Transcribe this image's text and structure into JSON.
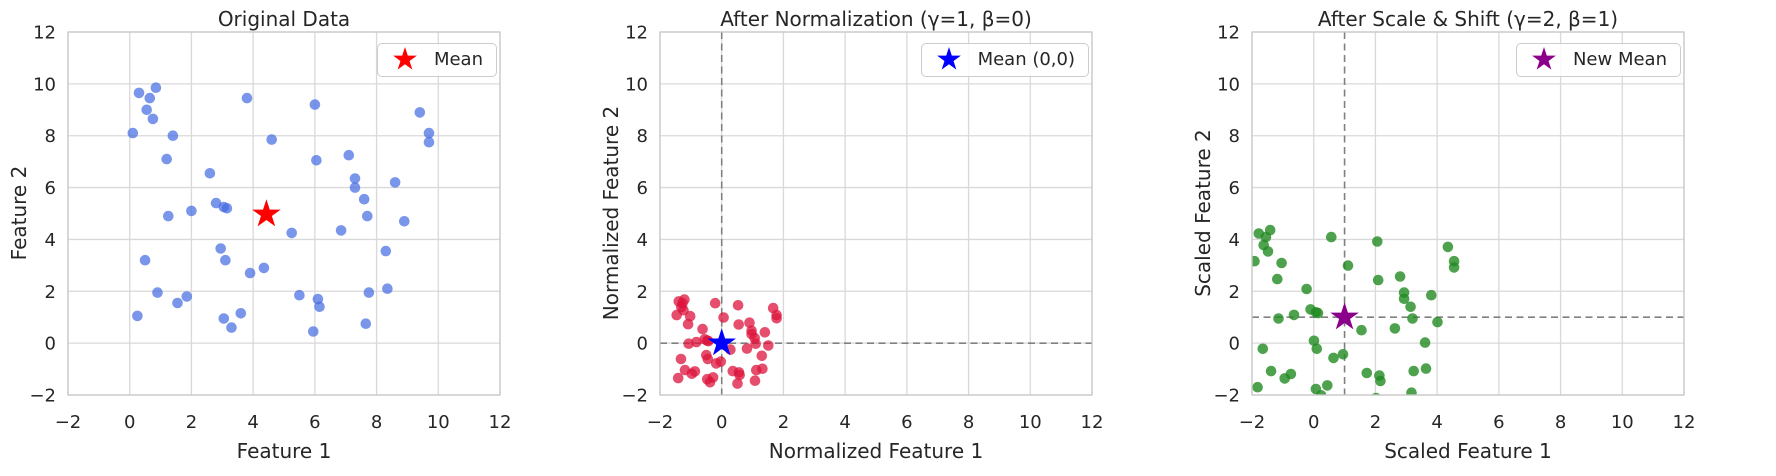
{
  "figure": {
    "background": "#ffffff",
    "grid_color": "#d9d9d9",
    "spine_color": "#c8c8c8",
    "text_color": "#262626",
    "refline_color": "#808080"
  },
  "chart_data": [
    {
      "type": "scatter",
      "title": "Original Data",
      "xlabel": "Feature 1",
      "ylabel": "Feature 2",
      "xlim": [
        -2,
        12
      ],
      "ylim": [
        -2,
        12
      ],
      "xticks": [
        -2,
        0,
        2,
        4,
        6,
        8,
        10,
        12
      ],
      "yticks": [
        -2,
        0,
        2,
        4,
        6,
        8,
        10,
        12
      ],
      "grid": true,
      "legend": {
        "label": "Mean",
        "marker": "star",
        "color": "#ff0000",
        "position": "upper right"
      },
      "point_color": "rgba(65,105,225,0.7)",
      "mean_star": {
        "x": 4.43,
        "y": 4.97,
        "color": "#ff0000"
      },
      "reflines": null,
      "points": [
        [
          0.3,
          9.65
        ],
        [
          0.85,
          9.85
        ],
        [
          0.65,
          9.45
        ],
        [
          0.55,
          9.0
        ],
        [
          0.75,
          8.65
        ],
        [
          0.1,
          8.1
        ],
        [
          1.4,
          8.0
        ],
        [
          3.8,
          9.45
        ],
        [
          6.0,
          9.2
        ],
        [
          9.4,
          8.9
        ],
        [
          9.7,
          8.1
        ],
        [
          9.7,
          7.75
        ],
        [
          4.6,
          7.85
        ],
        [
          1.2,
          7.1
        ],
        [
          6.05,
          7.05
        ],
        [
          7.1,
          7.25
        ],
        [
          2.6,
          6.55
        ],
        [
          7.3,
          6.35
        ],
        [
          8.6,
          6.2
        ],
        [
          7.3,
          6.0
        ],
        [
          7.6,
          5.55
        ],
        [
          2.8,
          5.4
        ],
        [
          3.05,
          5.25
        ],
        [
          3.15,
          5.2
        ],
        [
          2.0,
          5.1
        ],
        [
          1.25,
          4.9
        ],
        [
          7.7,
          4.9
        ],
        [
          8.9,
          4.7
        ],
        [
          6.85,
          4.35
        ],
        [
          5.25,
          4.25
        ],
        [
          2.95,
          3.65
        ],
        [
          8.3,
          3.55
        ],
        [
          3.1,
          3.2
        ],
        [
          0.5,
          3.2
        ],
        [
          4.35,
          2.9
        ],
        [
          3.9,
          2.7
        ],
        [
          8.35,
          2.1
        ],
        [
          0.9,
          1.95
        ],
        [
          5.5,
          1.85
        ],
        [
          1.85,
          1.8
        ],
        [
          6.1,
          1.7
        ],
        [
          1.55,
          1.55
        ],
        [
          6.15,
          1.4
        ],
        [
          3.6,
          1.15
        ],
        [
          3.05,
          0.95
        ],
        [
          0.25,
          1.05
        ],
        [
          7.75,
          1.95
        ],
        [
          7.65,
          0.75
        ],
        [
          3.3,
          0.6
        ],
        [
          5.95,
          0.45
        ]
      ]
    },
    {
      "type": "scatter",
      "title": "After Normalization (γ=1, β=0)",
      "xlabel": "Normalized Feature 1",
      "ylabel": "Normalized Feature 2",
      "xlim": [
        -2,
        12
      ],
      "ylim": [
        -2,
        12
      ],
      "xticks": [
        -2,
        0,
        2,
        4,
        6,
        8,
        10,
        12
      ],
      "yticks": [
        -2,
        0,
        2,
        4,
        6,
        8,
        10,
        12
      ],
      "grid": true,
      "legend": {
        "label": "Mean (0,0)",
        "marker": "star",
        "color": "#0000ff",
        "position": "upper right"
      },
      "point_color": "rgba(220,20,60,0.75)",
      "mean_star": {
        "x": 0,
        "y": 0,
        "color": "#0000ff"
      },
      "reflines": {
        "x": 0,
        "y": 0
      },
      "points": [
        [
          -1.39,
          1.61
        ],
        [
          -1.21,
          1.68
        ],
        [
          -1.27,
          1.54
        ],
        [
          -1.31,
          1.39
        ],
        [
          -1.24,
          1.27
        ],
        [
          -1.46,
          1.08
        ],
        [
          -1.02,
          1.04
        ],
        [
          -0.21,
          1.54
        ],
        [
          0.53,
          1.46
        ],
        [
          1.67,
          1.35
        ],
        [
          1.78,
          1.08
        ],
        [
          1.78,
          0.96
        ],
        [
          0.06,
          0.99
        ],
        [
          -1.09,
          0.73
        ],
        [
          0.55,
          0.72
        ],
        [
          0.9,
          0.79
        ],
        [
          -0.62,
          0.54
        ],
        [
          0.97,
          0.48
        ],
        [
          1.4,
          0.42
        ],
        [
          0.97,
          0.35
        ],
        [
          1.07,
          0.2
        ],
        [
          -0.55,
          0.15
        ],
        [
          -0.47,
          0.1
        ],
        [
          -0.43,
          0.08
        ],
        [
          -0.82,
          0.04
        ],
        [
          -1.07,
          -0.02
        ],
        [
          1.1,
          -0.02
        ],
        [
          1.51,
          -0.09
        ],
        [
          0.82,
          -0.21
        ],
        [
          0.28,
          -0.25
        ],
        [
          -0.5,
          -0.46
        ],
        [
          1.3,
          -0.49
        ],
        [
          -0.45,
          -0.61
        ],
        [
          -1.32,
          -0.61
        ],
        [
          -0.03,
          -0.71
        ],
        [
          -0.18,
          -0.78
        ],
        [
          1.32,
          -0.99
        ],
        [
          -1.19,
          -1.04
        ],
        [
          0.36,
          -1.08
        ],
        [
          -0.87,
          -1.09
        ],
        [
          0.56,
          -1.13
        ],
        [
          -0.97,
          -1.18
        ],
        [
          0.58,
          -1.23
        ],
        [
          -0.28,
          -1.32
        ],
        [
          -0.47,
          -1.39
        ],
        [
          -1.41,
          -1.35
        ],
        [
          1.12,
          -1.04
        ],
        [
          1.08,
          -1.45
        ],
        [
          -0.38,
          -1.51
        ],
        [
          0.51,
          -1.56
        ]
      ]
    },
    {
      "type": "scatter",
      "title": "After Scale & Shift (γ=2, β=1)",
      "xlabel": "Scaled Feature 1",
      "ylabel": "Scaled Feature 2",
      "xlim": [
        -2,
        12
      ],
      "ylim": [
        -2,
        12
      ],
      "xticks": [
        -2,
        0,
        2,
        4,
        6,
        8,
        10,
        12
      ],
      "yticks": [
        -2,
        0,
        2,
        4,
        6,
        8,
        10,
        12
      ],
      "grid": true,
      "legend": {
        "label": "New Mean",
        "marker": "star",
        "color": "#8b008b",
        "position": "upper right"
      },
      "point_color": "rgba(34,139,34,0.8)",
      "mean_star": {
        "x": 1,
        "y": 1,
        "color": "#8b008b"
      },
      "reflines": {
        "x": 1,
        "y": 1
      },
      "points": [
        [
          -1.78,
          4.23
        ],
        [
          -1.41,
          4.36
        ],
        [
          -1.55,
          4.09
        ],
        [
          -1.62,
          3.78
        ],
        [
          -1.48,
          3.54
        ],
        [
          -1.92,
          3.16
        ],
        [
          -1.04,
          3.09
        ],
        [
          0.57,
          4.09
        ],
        [
          2.06,
          3.92
        ],
        [
          4.35,
          3.71
        ],
        [
          4.55,
          3.16
        ],
        [
          4.55,
          2.92
        ],
        [
          1.11,
          2.99
        ],
        [
          -1.18,
          2.47
        ],
        [
          2.09,
          2.43
        ],
        [
          2.8,
          2.57
        ],
        [
          -0.23,
          2.09
        ],
        [
          2.93,
          1.95
        ],
        [
          3.81,
          1.85
        ],
        [
          2.93,
          1.71
        ],
        [
          3.14,
          1.4
        ],
        [
          -0.1,
          1.3
        ],
        [
          0.07,
          1.19
        ],
        [
          0.14,
          1.16
        ],
        [
          -0.64,
          1.09
        ],
        [
          -1.14,
          0.95
        ],
        [
          3.2,
          0.95
        ],
        [
          4.01,
          0.81
        ],
        [
          2.63,
          0.57
        ],
        [
          1.55,
          0.5
        ],
        [
          0.01,
          0.09
        ],
        [
          3.61,
          0.02
        ],
        [
          0.1,
          -0.22
        ],
        [
          -1.65,
          -0.22
        ],
        [
          0.95,
          -0.43
        ],
        [
          0.64,
          -0.57
        ],
        [
          3.64,
          -0.98
        ],
        [
          -1.38,
          -1.08
        ],
        [
          1.72,
          -1.15
        ],
        [
          -0.74,
          -1.19
        ],
        [
          2.13,
          -1.25
        ],
        [
          -0.94,
          -1.36
        ],
        [
          2.16,
          -1.46
        ],
        [
          0.44,
          -1.63
        ],
        [
          0.07,
          -1.77
        ],
        [
          -1.82,
          -1.7
        ],
        [
          3.24,
          -1.08
        ],
        [
          3.17,
          -1.91
        ],
        [
          0.24,
          -2.01
        ],
        [
          2.02,
          -2.12
        ]
      ]
    }
  ]
}
